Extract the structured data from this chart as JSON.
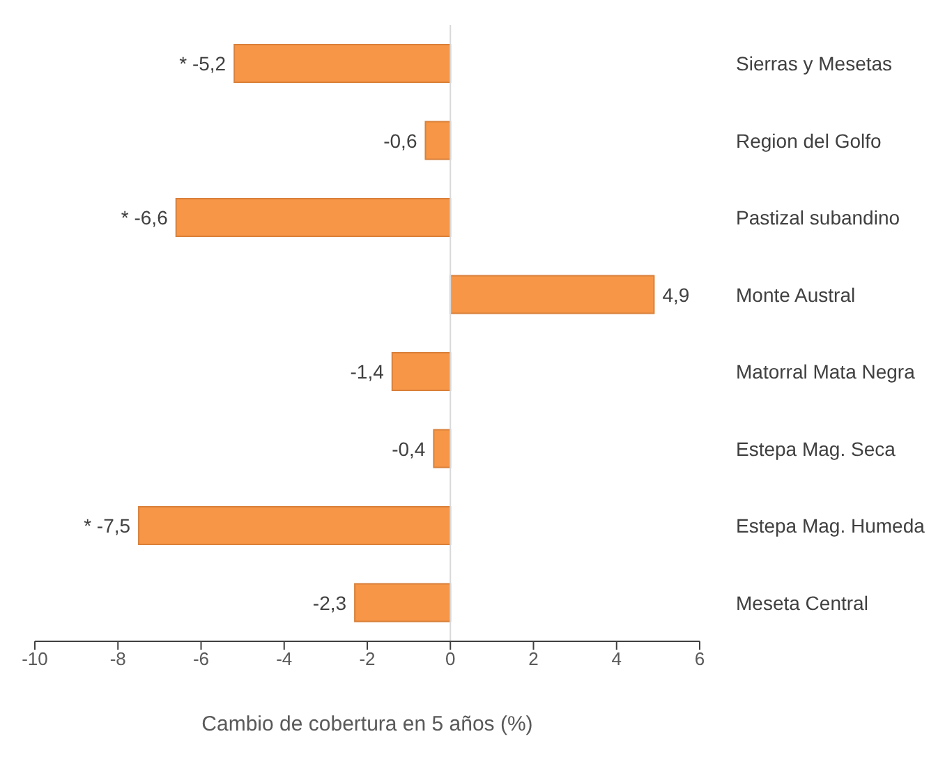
{
  "chart_data": {
    "type": "bar",
    "orientation": "horizontal",
    "xlabel": "Cambio de cobertura en 5 años (%)",
    "categories": [
      "Sierras y Mesetas",
      "Region del Golfo",
      "Pastizal subandino",
      "Monte Austral",
      "Matorral Mata Negra",
      "Estepa Mag. Seca",
      "Estepa Mag. Humeda",
      "Meseta Central"
    ],
    "values": [
      -5.2,
      -0.6,
      -6.6,
      4.9,
      -1.4,
      -0.4,
      -7.5,
      -2.3
    ],
    "value_labels": [
      "* -5,2",
      "-0,6",
      "* -6,6",
      "4,9",
      "-1,4",
      "-0,4",
      "* -7,5",
      "-2,3"
    ],
    "color": "#f79646",
    "xlim": [
      -10,
      6
    ],
    "xticks": [
      -10,
      -8,
      -6,
      -4,
      -2,
      0,
      2,
      4,
      6
    ],
    "ref_lines": [
      {
        "axis": "x",
        "value": 0,
        "color": "#d9d9d9"
      }
    ],
    "grid": false,
    "legend": false
  }
}
